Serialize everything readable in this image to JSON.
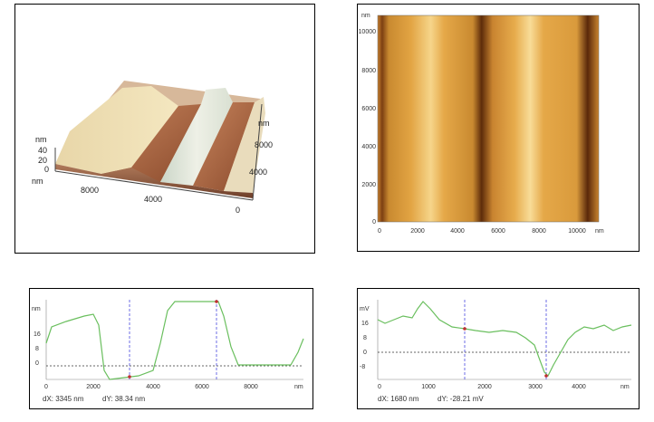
{
  "surface3d": {
    "z_unit": "nm",
    "z_ticks": [
      "40",
      "20",
      "0"
    ],
    "x_unit": "nm",
    "x_ticks": [
      "8000",
      "4000"
    ],
    "y_unit": "nm",
    "y_ticks": [
      "8000",
      "4000",
      "0"
    ]
  },
  "topo_map": {
    "unit": "nm",
    "y_ticks": [
      "10000",
      "8000",
      "6000",
      "4000",
      "2000",
      "0"
    ],
    "x_ticks": [
      "0",
      "2000",
      "4000",
      "6000",
      "8000",
      "10000"
    ],
    "x_unit": "nm"
  },
  "profile_height": {
    "y_unit": "nm",
    "y_ticks": [
      "16",
      "8",
      "0"
    ],
    "x_ticks": [
      "0",
      "2000",
      "4000",
      "6000",
      "8000"
    ],
    "x_unit": "nm",
    "dx": "dX: 3345 nm",
    "dy": "dY: 38.34 nm",
    "line_color": "#6abf5e",
    "cursor_color": "#4a4adf"
  },
  "profile_potential": {
    "y_unit": "mV",
    "y_ticks": [
      "16",
      "8",
      "0",
      "-8"
    ],
    "x_ticks": [
      "0",
      "1000",
      "2000",
      "3000",
      "4000"
    ],
    "x_unit": "nm",
    "dx": "dX: 1680 nm",
    "dy": "dY: -28.21 mV",
    "line_color": "#6abf5e",
    "cursor_color": "#4a4adf"
  }
}
